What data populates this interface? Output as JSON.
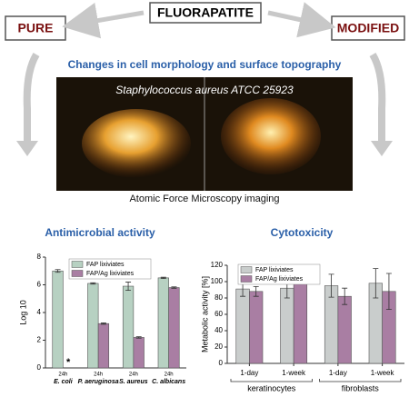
{
  "header": {
    "title": "FLUORAPATITE",
    "left": "PURE",
    "right": "MODIFIED",
    "subtitle": "Changes in cell morphology and surface topography",
    "image_caption": "Staphylococcus aureus ATCC 25923",
    "image_label": "Atomic Force Microscopy imaging"
  },
  "chart_data": [
    {
      "type": "bar",
      "title": "Antimicrobial activity",
      "y_label": "Log 10",
      "categories": [
        "E. coli",
        "P. aeruginosa",
        "S. aureus",
        "C. albicans"
      ],
      "sublabels": [
        "24h",
        "24h",
        "24h",
        "24h"
      ],
      "series": [
        {
          "name": "FAP lixiviates",
          "color": "#b7d1c2",
          "values": [
            7.0,
            6.1,
            5.9,
            6.5
          ],
          "errors": [
            0.1,
            0.05,
            0.3,
            0.05
          ]
        },
        {
          "name": "FAP/Ag lixiviates",
          "color": "#a97ea3",
          "values": [
            null,
            3.2,
            2.2,
            5.8
          ],
          "errors": [
            null,
            0.05,
            0.05,
            0.05
          ]
        }
      ],
      "annotation": "*",
      "ylim": [
        0,
        8
      ],
      "yticks": [
        0,
        2,
        4,
        6,
        8
      ]
    },
    {
      "type": "bar",
      "title": "Cytotoxicity",
      "y_label": "Metabolic activity [%]",
      "categories": [
        "1-day",
        "1-week",
        "1-day",
        "1-week"
      ],
      "groups": [
        "keratinocytes",
        "fibroblasts"
      ],
      "series": [
        {
          "name": "FAP lixiviates",
          "color": "#c9cdcc",
          "values": [
            91,
            92,
            95,
            98
          ],
          "errors": [
            9,
            12,
            14,
            18
          ]
        },
        {
          "name": "FAP/Ag lixiviates",
          "color": "#a97ea3",
          "values": [
            88,
            103,
            82,
            88
          ],
          "errors": [
            6,
            3,
            10,
            22
          ]
        }
      ],
      "ylim": [
        0,
        120
      ],
      "yticks": [
        0,
        20,
        40,
        60,
        80,
        100,
        120
      ]
    }
  ]
}
